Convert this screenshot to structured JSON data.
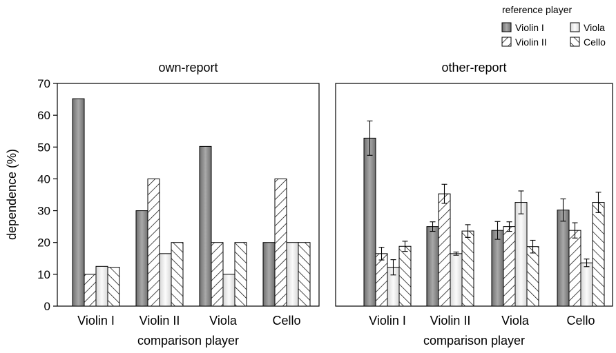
{
  "legend": {
    "title": "reference player",
    "entries": [
      {
        "key": "violin1",
        "label": "Violin I",
        "pattern": "gradient"
      },
      {
        "key": "violin2",
        "label": "Violin II",
        "pattern": "backslash"
      },
      {
        "key": "viola",
        "label": "Viola",
        "pattern": "light-gradient"
      },
      {
        "key": "cello",
        "label": "Cello",
        "pattern": "slash"
      }
    ]
  },
  "colors": {
    "dark_bar_top": "#6f6f6f",
    "dark_bar_mid": "#a9a9a9",
    "light_bar_top": "#d8d8d8",
    "light_bar_mid": "#fbfbfb",
    "hatch": "#000000",
    "axis": "#000000"
  },
  "chart_data": [
    {
      "type": "bar",
      "title": "own-report",
      "xlabel": "comparison player",
      "ylabel": "dependence (%)",
      "ylim": [
        0,
        70
      ],
      "yticks": [
        0,
        10,
        20,
        30,
        40,
        50,
        60,
        70
      ],
      "categories": [
        "Violin I",
        "Violin II",
        "Viola",
        "Cello"
      ],
      "error_bars": false,
      "series": [
        {
          "name": "Violin I",
          "values": [
            65.2,
            30,
            50.2,
            20
          ]
        },
        {
          "name": "Violin II",
          "values": [
            10,
            40,
            20,
            40
          ]
        },
        {
          "name": "Viola",
          "values": [
            12.5,
            16.5,
            10,
            20
          ]
        },
        {
          "name": "Cello",
          "values": [
            12.2,
            20,
            20,
            20
          ]
        }
      ]
    },
    {
      "type": "bar",
      "title": "other-report",
      "xlabel": "comparison player",
      "ylabel": "",
      "ylim": [
        0,
        70
      ],
      "yticks": [
        0,
        10,
        20,
        30,
        40,
        50,
        60,
        70
      ],
      "categories": [
        "Violin I",
        "Violin II",
        "Viola",
        "Cello"
      ],
      "error_bars": true,
      "series": [
        {
          "name": "Violin I",
          "values": [
            52.8,
            25,
            23.8,
            30.2
          ],
          "errors": [
            5.4,
            1.5,
            2.8,
            3.5
          ]
        },
        {
          "name": "Violin II",
          "values": [
            16.5,
            35.3,
            25,
            23.8
          ],
          "errors": [
            2,
            3,
            1.5,
            2.4
          ]
        },
        {
          "name": "Viola",
          "values": [
            12.2,
            16.5,
            32.6,
            13.6
          ],
          "errors": [
            2.4,
            0.5,
            3.6,
            1.2
          ]
        },
        {
          "name": "Cello",
          "values": [
            18.8,
            23.6,
            18.7,
            32.6
          ],
          "errors": [
            1.6,
            2,
            2,
            3.2
          ]
        }
      ]
    }
  ]
}
